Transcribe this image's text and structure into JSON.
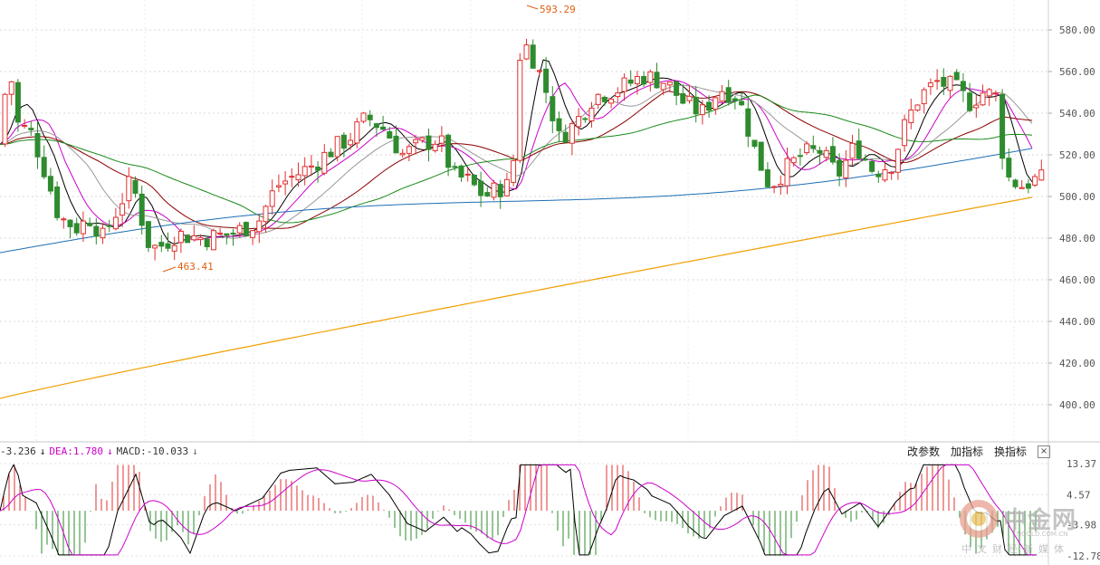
{
  "chart_data": [
    {
      "type": "candlestick",
      "title": "",
      "ylim": [
        385,
        600
      ],
      "y_ticks": [
        400,
        420,
        440,
        460,
        480,
        500,
        520,
        540,
        560,
        580
      ],
      "y_tick_labels": [
        "400.00",
        "420.00",
        "440.00",
        "460.00",
        "480.00",
        "500.00",
        "520.00",
        "540.00",
        "560.00",
        "580.00"
      ],
      "grid": true,
      "annotations": [
        {
          "text": "593.29",
          "value": 593.29,
          "type": "high"
        },
        {
          "text": "463.41",
          "value": 463.41,
          "type": "low"
        }
      ],
      "colors": {
        "up": "#e03030",
        "down": "#2e8b2e",
        "ma_black": "#000000",
        "ma_magenta": "#cc00cc",
        "ma_gray": "#999999",
        "ma_darkred": "#8b0000",
        "ma_green": "#1a8a1a",
        "ma_blue": "#1f6fb5",
        "ma_orange": "#f0a000"
      }
    },
    {
      "type": "macd",
      "header": {
        "dif_label": "-3.236",
        "dea_label": "DEA:1.780",
        "macd_label": "MACD:-10.033"
      },
      "y_ticks": [
        13.37,
        4.57,
        -3.98,
        -12.78
      ],
      "y_tick_labels": [
        "13.37",
        "4.57",
        "-3.98",
        "-12.78"
      ],
      "colors": {
        "pos": "#e03030",
        "neg": "#2e8b2e",
        "dif": "#000000",
        "dea": "#cc00cc"
      }
    }
  ],
  "toolbar": {
    "change_params": "改参数",
    "add_indicator": "加指标",
    "switch_indicator": "换指标",
    "close": "×"
  },
  "watermark": {
    "cn": "中金网",
    "en": "CNGOLD.COM.CN",
    "sub": "中文财经新媒体"
  }
}
